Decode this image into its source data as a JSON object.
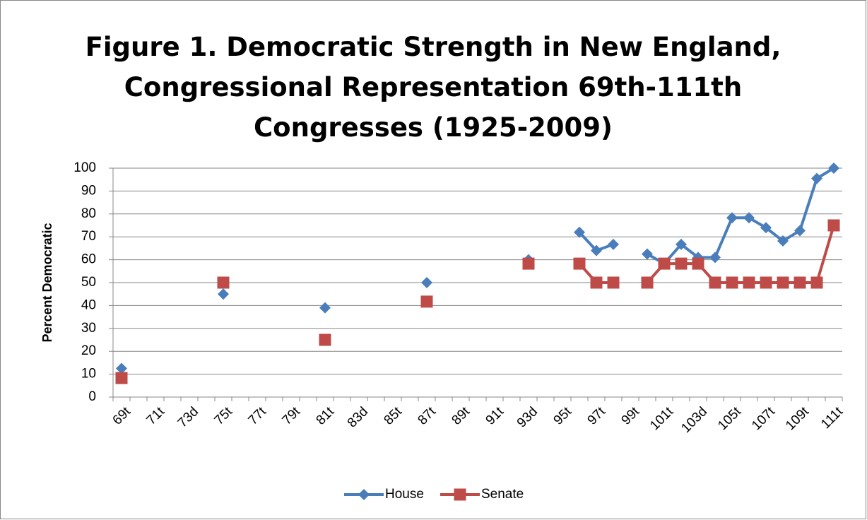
{
  "chart_data": {
    "type": "line",
    "title": "Figure 1. Democratic Strength in New England, Congressional Representation 69th-111th Congresses (1925-2009)",
    "y_label": "Percent Democratic",
    "categories": [
      "69t",
      null,
      "71t",
      null,
      "73d",
      null,
      "75t",
      null,
      "77t",
      null,
      "79t",
      null,
      "81t",
      null,
      "83d",
      null,
      "85t",
      null,
      "87t",
      null,
      "89t",
      null,
      "91t",
      null,
      "93d",
      null,
      "95t",
      null,
      "97t",
      null,
      "99t",
      null,
      "101t",
      null,
      "103d",
      null,
      "105t",
      null,
      "107t",
      null,
      "109t",
      null,
      "111t"
    ],
    "series": [
      {
        "name": "House",
        "color": "#4a7ebb",
        "marker": "diamond",
        "values": [
          12.5,
          null,
          null,
          null,
          null,
          null,
          45,
          null,
          null,
          null,
          null,
          null,
          39,
          null,
          null,
          null,
          null,
          null,
          50,
          null,
          null,
          null,
          null,
          null,
          60,
          null,
          null,
          72,
          64,
          66.7,
          null,
          62.5,
          58.3,
          66.7,
          61,
          61,
          78.3,
          78.3,
          74,
          68.2,
          72.7,
          95.5,
          100
        ]
      },
      {
        "name": "Senate",
        "color": "#be4b48",
        "marker": "square",
        "values": [
          8.3,
          null,
          null,
          null,
          null,
          null,
          50,
          null,
          null,
          null,
          null,
          null,
          25,
          null,
          null,
          null,
          null,
          null,
          41.7,
          null,
          null,
          null,
          null,
          null,
          58.3,
          null,
          null,
          58.3,
          50,
          50,
          null,
          50,
          58.3,
          58.3,
          58.3,
          50,
          50,
          50,
          50,
          50,
          50,
          50,
          75
        ]
      }
    ],
    "ylim": [
      0,
      100
    ],
    "yticks": [
      0,
      10,
      20,
      30,
      40,
      50,
      60,
      70,
      80,
      90,
      100
    ],
    "grid": true,
    "legend": "bottom"
  }
}
